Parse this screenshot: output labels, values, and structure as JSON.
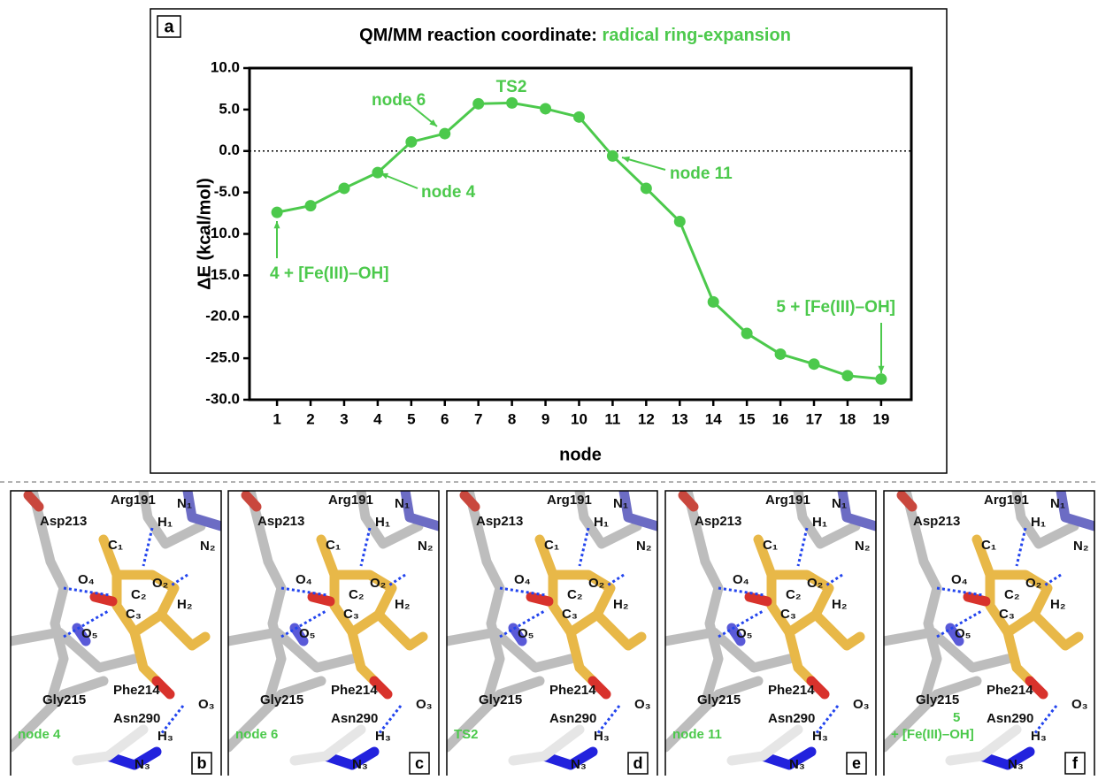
{
  "chart_data": {
    "type": "line",
    "panel_label": "a",
    "title": "QM/MM reaction coordinate:",
    "title_highlight": "radical ring-expansion",
    "x_label": "node",
    "y_label": "ΔE (kcal/mol)",
    "x": [
      1,
      2,
      3,
      4,
      5,
      6,
      7,
      8,
      9,
      10,
      11,
      12,
      13,
      14,
      15,
      16,
      17,
      18,
      19
    ],
    "values": [
      -7.4,
      -6.6,
      -4.5,
      -2.6,
      1.1,
      2.1,
      5.7,
      5.8,
      5.1,
      4.1,
      -0.6,
      -4.5,
      -8.5,
      -18.2,
      -22.0,
      -24.5,
      -25.7,
      -27.1,
      -27.5
    ],
    "color": "#4cc94c",
    "xlim": [
      0.18,
      19.9
    ],
    "xticks": [
      1,
      2,
      3,
      4,
      5,
      6,
      7,
      8,
      9,
      10,
      11,
      12,
      13,
      14,
      15,
      16,
      17,
      18,
      19
    ],
    "ylim": [
      -30,
      10
    ],
    "yticks": [
      {
        "value": 10,
        "label": "10.0"
      },
      {
        "value": 5,
        "label": "5.0"
      },
      {
        "value": 0,
        "label": "0.0"
      },
      {
        "value": -5,
        "label": "-5.0"
      },
      {
        "value": -10,
        "label": "-10.0"
      },
      {
        "value": -15,
        "label": "-15.0"
      },
      {
        "value": -20,
        "label": "-20.0"
      },
      {
        "value": -25,
        "label": "-25.0"
      },
      {
        "value": -30,
        "label": "-30.0"
      }
    ],
    "zero_line": true,
    "grid": false,
    "annotations": [
      "4 + [Fe(III)–OH]",
      "node 4",
      "node 6",
      "TS2",
      "node 11",
      "5 + [Fe(III)–OH]"
    ]
  },
  "panels": [
    {
      "label": "b",
      "state": [
        "node 4"
      ]
    },
    {
      "label": "c",
      "state": [
        "node 6"
      ]
    },
    {
      "label": "d",
      "state": [
        "TS2"
      ]
    },
    {
      "label": "e",
      "state": [
        "node 11"
      ]
    },
    {
      "label": "f",
      "state": [
        "5",
        "+ [Fe(III)–OH]"
      ]
    }
  ],
  "atom_labels": [
    "Asp213",
    "Arg191",
    "N₁",
    "H₁",
    "N₂",
    "C₁",
    "O₄",
    "C₂",
    "O₂",
    "H₂",
    "C₃",
    "O₅",
    "Phe214",
    "Gly215",
    "Asn290",
    "O₃",
    "H₃",
    "N₃"
  ]
}
